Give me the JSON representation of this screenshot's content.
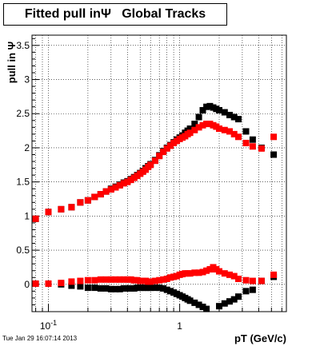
{
  "chart_data": {
    "type": "scatter",
    "title": "Fitted pull inΨ   Global Tracks",
    "xlabel": "pT (GeV/c)",
    "ylabel": "pull in Ψ",
    "x_scale": "log",
    "xlim": [
      0.075,
      6.5
    ],
    "ylim": [
      -0.4,
      3.65
    ],
    "x_tick_labels": [
      {
        "x": 0.1,
        "base": "10",
        "exp": "-1"
      },
      {
        "x": 1,
        "base": "1",
        "exp": ""
      }
    ],
    "y_ticks": [
      0,
      0.5,
      1,
      1.5,
      2,
      2.5,
      3,
      3.5
    ],
    "y_tick_labels": [
      "0",
      "0.5",
      "1",
      "1.5",
      "2",
      "2.5",
      "3",
      "3.5"
    ],
    "grid": true,
    "series": [
      {
        "color": "#000000",
        "values": [
          [
            0.08,
            0.96
          ],
          [
            0.1,
            1.06
          ],
          [
            0.125,
            1.1
          ],
          [
            0.15,
            1.13
          ],
          [
            0.175,
            1.2
          ],
          [
            0.2,
            1.23
          ],
          [
            0.225,
            1.28
          ],
          [
            0.25,
            1.32
          ],
          [
            0.275,
            1.36
          ],
          [
            0.3,
            1.4
          ],
          [
            0.325,
            1.43
          ],
          [
            0.35,
            1.46
          ],
          [
            0.375,
            1.49
          ],
          [
            0.4,
            1.51
          ],
          [
            0.425,
            1.54
          ],
          [
            0.45,
            1.57
          ],
          [
            0.475,
            1.6
          ],
          [
            0.5,
            1.63
          ],
          [
            0.525,
            1.66
          ],
          [
            0.55,
            1.7
          ],
          [
            0.575,
            1.73
          ],
          [
            0.6,
            1.76
          ],
          [
            0.65,
            1.82
          ],
          [
            0.7,
            1.89
          ],
          [
            0.75,
            1.95
          ],
          [
            0.8,
            2.0
          ],
          [
            0.85,
            2.04
          ],
          [
            0.9,
            2.08
          ],
          [
            0.95,
            2.12
          ],
          [
            1.0,
            2.15
          ],
          [
            1.05,
            2.18
          ],
          [
            1.1,
            2.22
          ],
          [
            1.15,
            2.25
          ],
          [
            1.2,
            2.28
          ],
          [
            1.3,
            2.35
          ],
          [
            1.4,
            2.45
          ],
          [
            1.5,
            2.55
          ],
          [
            1.6,
            2.6
          ],
          [
            1.7,
            2.61
          ],
          [
            1.8,
            2.59
          ],
          [
            1.9,
            2.57
          ],
          [
            2.0,
            2.55
          ],
          [
            2.2,
            2.52
          ],
          [
            2.4,
            2.48
          ],
          [
            2.6,
            2.45
          ],
          [
            2.8,
            2.42
          ],
          [
            3.2,
            2.24
          ],
          [
            3.6,
            2.12
          ],
          [
            4.2,
            2.0
          ],
          [
            5.2,
            1.9
          ]
        ]
      },
      {
        "color": "#ff0000",
        "values": [
          [
            0.08,
            0.96
          ],
          [
            0.1,
            1.06
          ],
          [
            0.125,
            1.1
          ],
          [
            0.15,
            1.13
          ],
          [
            0.175,
            1.2
          ],
          [
            0.2,
            1.23
          ],
          [
            0.225,
            1.28
          ],
          [
            0.25,
            1.32
          ],
          [
            0.275,
            1.36
          ],
          [
            0.3,
            1.39
          ],
          [
            0.325,
            1.42
          ],
          [
            0.35,
            1.45
          ],
          [
            0.375,
            1.48
          ],
          [
            0.4,
            1.5
          ],
          [
            0.425,
            1.53
          ],
          [
            0.45,
            1.56
          ],
          [
            0.475,
            1.59
          ],
          [
            0.5,
            1.62
          ],
          [
            0.525,
            1.65
          ],
          [
            0.55,
            1.68
          ],
          [
            0.575,
            1.72
          ],
          [
            0.6,
            1.75
          ],
          [
            0.65,
            1.81
          ],
          [
            0.7,
            1.88
          ],
          [
            0.75,
            1.94
          ],
          [
            0.8,
            1.99
          ],
          [
            0.85,
            2.03
          ],
          [
            0.9,
            2.07
          ],
          [
            0.95,
            2.1
          ],
          [
            1.0,
            2.13
          ],
          [
            1.05,
            2.15
          ],
          [
            1.1,
            2.17
          ],
          [
            1.15,
            2.2
          ],
          [
            1.2,
            2.22
          ],
          [
            1.3,
            2.26
          ],
          [
            1.4,
            2.3
          ],
          [
            1.5,
            2.33
          ],
          [
            1.6,
            2.35
          ],
          [
            1.7,
            2.35
          ],
          [
            1.8,
            2.33
          ],
          [
            1.9,
            2.31
          ],
          [
            2.0,
            2.28
          ],
          [
            2.2,
            2.26
          ],
          [
            2.4,
            2.24
          ],
          [
            2.6,
            2.2
          ],
          [
            2.8,
            2.16
          ],
          [
            3.2,
            2.07
          ],
          [
            3.6,
            2.02
          ],
          [
            4.2,
            1.99
          ],
          [
            5.2,
            2.16
          ]
        ]
      },
      {
        "color": "#000000",
        "values": [
          [
            0.08,
            0.01
          ],
          [
            0.1,
            0.01
          ],
          [
            0.125,
            0.0
          ],
          [
            0.15,
            -0.02
          ],
          [
            0.175,
            -0.03
          ],
          [
            0.2,
            -0.05
          ],
          [
            0.225,
            -0.05
          ],
          [
            0.25,
            -0.06
          ],
          [
            0.275,
            -0.06
          ],
          [
            0.3,
            -0.07
          ],
          [
            0.325,
            -0.07
          ],
          [
            0.35,
            -0.07
          ],
          [
            0.375,
            -0.06
          ],
          [
            0.4,
            -0.06
          ],
          [
            0.425,
            -0.06
          ],
          [
            0.45,
            -0.06
          ],
          [
            0.475,
            -0.05
          ],
          [
            0.5,
            -0.05
          ],
          [
            0.525,
            -0.05
          ],
          [
            0.55,
            -0.05
          ],
          [
            0.575,
            -0.05
          ],
          [
            0.6,
            -0.05
          ],
          [
            0.65,
            -0.05
          ],
          [
            0.7,
            -0.05
          ],
          [
            0.75,
            -0.06
          ],
          [
            0.8,
            -0.08
          ],
          [
            0.85,
            -0.1
          ],
          [
            0.9,
            -0.12
          ],
          [
            0.95,
            -0.14
          ],
          [
            1.0,
            -0.16
          ],
          [
            1.05,
            -0.18
          ],
          [
            1.1,
            -0.2
          ],
          [
            1.15,
            -0.22
          ],
          [
            1.2,
            -0.24
          ],
          [
            1.3,
            -0.27
          ],
          [
            1.4,
            -0.3
          ],
          [
            1.5,
            -0.33
          ],
          [
            1.6,
            -0.36
          ],
          [
            2.0,
            -0.32
          ],
          [
            2.2,
            -0.28
          ],
          [
            2.4,
            -0.25
          ],
          [
            2.6,
            -0.22
          ],
          [
            2.8,
            -0.18
          ],
          [
            3.2,
            -0.1
          ],
          [
            3.6,
            -0.08
          ],
          [
            4.2,
            0.05
          ],
          [
            5.2,
            0.11
          ]
        ]
      },
      {
        "color": "#ff0000",
        "values": [
          [
            0.08,
            0.01
          ],
          [
            0.1,
            0.01
          ],
          [
            0.125,
            0.02
          ],
          [
            0.15,
            0.04
          ],
          [
            0.175,
            0.05
          ],
          [
            0.2,
            0.06
          ],
          [
            0.225,
            0.06
          ],
          [
            0.25,
            0.07
          ],
          [
            0.275,
            0.07
          ],
          [
            0.3,
            0.07
          ],
          [
            0.325,
            0.07
          ],
          [
            0.35,
            0.07
          ],
          [
            0.375,
            0.07
          ],
          [
            0.4,
            0.07
          ],
          [
            0.425,
            0.07
          ],
          [
            0.45,
            0.06
          ],
          [
            0.475,
            0.06
          ],
          [
            0.5,
            0.05
          ],
          [
            0.525,
            0.05
          ],
          [
            0.55,
            0.05
          ],
          [
            0.575,
            0.04
          ],
          [
            0.6,
            0.04
          ],
          [
            0.65,
            0.05
          ],
          [
            0.7,
            0.06
          ],
          [
            0.75,
            0.07
          ],
          [
            0.8,
            0.08
          ],
          [
            0.85,
            0.1
          ],
          [
            0.9,
            0.11
          ],
          [
            0.95,
            0.12
          ],
          [
            1.0,
            0.14
          ],
          [
            1.05,
            0.15
          ],
          [
            1.1,
            0.16
          ],
          [
            1.15,
            0.16
          ],
          [
            1.2,
            0.16
          ],
          [
            1.3,
            0.17
          ],
          [
            1.4,
            0.17
          ],
          [
            1.5,
            0.18
          ],
          [
            1.6,
            0.2
          ],
          [
            1.7,
            0.22
          ],
          [
            1.8,
            0.25
          ],
          [
            1.9,
            0.22
          ],
          [
            2.0,
            0.19
          ],
          [
            2.2,
            0.16
          ],
          [
            2.4,
            0.14
          ],
          [
            2.6,
            0.12
          ],
          [
            2.8,
            0.08
          ],
          [
            3.2,
            0.06
          ],
          [
            3.6,
            0.05
          ],
          [
            4.2,
            0.05
          ],
          [
            5.2,
            0.14
          ]
        ]
      }
    ]
  },
  "timestamp": "Tue Jan 29 16:07:14 2013"
}
